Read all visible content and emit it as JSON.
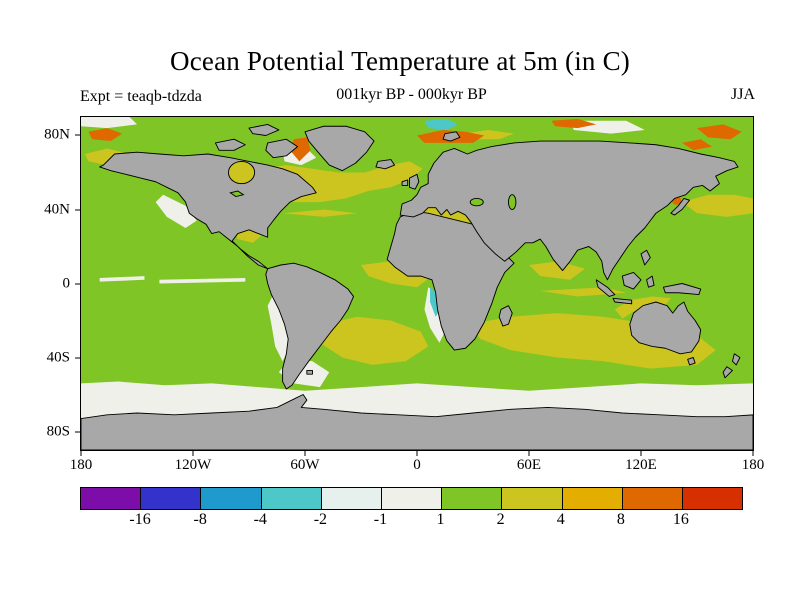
{
  "header": {
    "title": "Ocean Potential Temperature at 5m (in C)",
    "experiment": "Expt = teaqb-tdzda",
    "period": "001kyr BP - 000kyr BP",
    "season": "JJA"
  },
  "chart_data": {
    "type": "heatmap",
    "title": "Ocean Potential Temperature at 5m (in C)",
    "subtitle": "001kyr BP - 000kyr BP",
    "experiment": "teaqb-tdzda",
    "season": "JJA",
    "projection": "equirectangular world map, 180W-180E / 90S-90N",
    "units": "degrees C",
    "x_axis": {
      "ticks": [
        "180",
        "120W",
        "60W",
        "0",
        "60E",
        "120E",
        "180"
      ],
      "lon_values": [
        -180,
        -120,
        -60,
        0,
        60,
        120,
        180
      ]
    },
    "y_axis": {
      "ticks": [
        "80N",
        "40N",
        "0",
        "40S",
        "80S"
      ],
      "lat_values": [
        80,
        40,
        0,
        -40,
        -80
      ]
    },
    "colorbar": {
      "boundary_labels": [
        "-16",
        "-8",
        "-4",
        "-2",
        "-1",
        "1",
        "2",
        "4",
        "8",
        "16"
      ],
      "boundary_values": [
        -16,
        -8,
        -4,
        -2,
        -1,
        1,
        2,
        4,
        8,
        16
      ],
      "segment_colors": [
        "#7D0DA8",
        "#3333CC",
        "#1F9ACD",
        "#4CC8C8",
        "#E6F0EC",
        "#F0F0EA",
        "#7FC525",
        "#CCC41F",
        "#E3AE00",
        "#E06800",
        "#D63000"
      ]
    },
    "palette": {
      "land": "#A8A8A8",
      "coastline": "#000000",
      "ocean_default": "#7FC525",
      "purple": "#7D0DA8",
      "indigo": "#3333CC",
      "blue": "#1F9ACD",
      "cyan": "#4CC8C8",
      "pale": "#E6F0EC",
      "white": "#F0F0EA",
      "green": "#7FC525",
      "olive": "#CCC41F",
      "gold": "#E3AE00",
      "orange": "#E06800",
      "red": "#D63000"
    },
    "map_features": [
      {
        "region": "Most of the global ocean",
        "anomaly_range_c": "1 to 2"
      },
      {
        "region": "North Atlantic 40N-65N",
        "anomaly_range_c": "2 to 4"
      },
      {
        "region": "South Atlantic and South Indian Ocean near 40S",
        "anomaly_range_c": "2 to 4"
      },
      {
        "region": "Northwest Pacific east of Japan",
        "anomaly_range_c": "2 to 4"
      },
      {
        "region": "Bering Sea / Chukchi region",
        "anomaly_range_c": "2 to 8"
      },
      {
        "region": "Southern Ocean band 50S-65S",
        "anomaly_range_c": "-1 to 1"
      },
      {
        "region": "Eastern boundary upwelling zones (Chile-Peru, California, Namibia)",
        "anomaly_range_c": "-1 to 1"
      },
      {
        "region": "Norwegian Sea, Barents Sea, Baffin Bay, Kamchatka spots",
        "anomaly_range_c": "4 to 8"
      },
      {
        "region": "Barents Sea patch north of Scandinavia",
        "anomaly_range_c": "-4 to -2"
      },
      {
        "region": "Coastal sliver off Namibia/Angola",
        "anomaly_range_c": "-4 to -2"
      },
      {
        "region": "Land areas",
        "anomaly_range_c": "masked gray"
      }
    ]
  }
}
